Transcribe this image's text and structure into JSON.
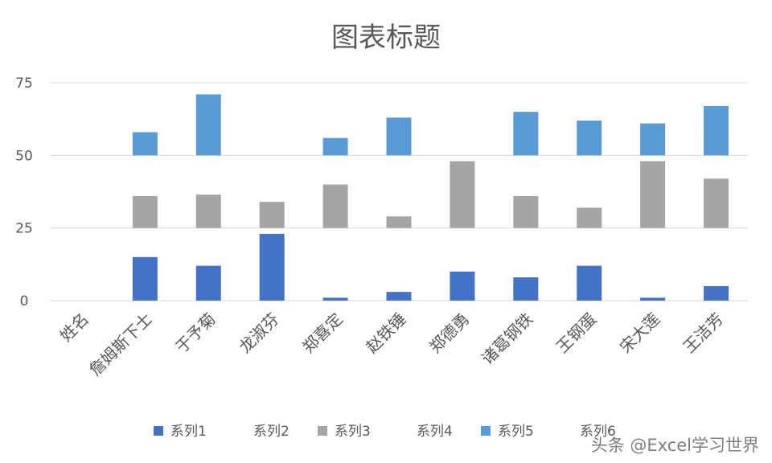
{
  "colors": {
    "series_1": "#4472c4",
    "series_3": "#a5a5a5",
    "series_5": "#5b9bd5",
    "grid": "#d9d9d9",
    "text": "#595959"
  },
  "watermark": "头条 @Excel学习世界",
  "chart_data": {
    "type": "bar",
    "title": "图表标题",
    "xlabel": "",
    "ylabel": "",
    "ylim": [
      0,
      75
    ],
    "yticks": [
      "0",
      "25",
      "50",
      "75"
    ],
    "grid": "horizontal",
    "legend_position": "bottom",
    "layout": "stacked bands with transparent spacer series",
    "categories": [
      "姓名",
      "詹姆斯下士",
      "于予菊",
      "龙淑芬",
      "郑喜定",
      "赵铁锤",
      "郑德勇",
      "诸葛钢铁",
      "王钢蛋",
      "宋大莲",
      "王洁芳"
    ],
    "series": [
      {
        "name": "系列1",
        "color": "#4472c4",
        "visible": true,
        "values": [
          0,
          15,
          12,
          23,
          1,
          3,
          10,
          8,
          12,
          1,
          5
        ]
      },
      {
        "name": "系列2",
        "color": "none",
        "visible": false,
        "values": [
          0,
          10,
          13,
          2,
          24,
          22,
          15,
          17,
          13,
          24,
          20
        ]
      },
      {
        "name": "系列3",
        "color": "#a5a5a5",
        "visible": true,
        "values": [
          0,
          11,
          11.5,
          9,
          15,
          4,
          23,
          11,
          7,
          23,
          17
        ]
      },
      {
        "name": "系列4",
        "color": "none",
        "visible": false,
        "values": [
          0,
          14,
          13.5,
          16,
          10,
          21,
          2,
          14,
          18,
          2,
          8
        ]
      },
      {
        "name": "系列5",
        "color": "#5b9bd5",
        "visible": true,
        "values": [
          0,
          8,
          21,
          0,
          6,
          13,
          0,
          15,
          12,
          11,
          17
        ]
      },
      {
        "name": "系列6",
        "color": "none",
        "visible": false,
        "values": [
          0,
          0,
          0,
          0,
          0,
          0,
          0,
          0,
          0,
          0,
          0
        ]
      }
    ]
  }
}
